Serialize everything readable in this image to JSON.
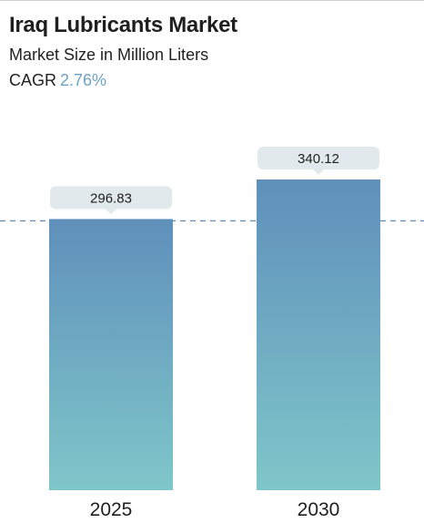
{
  "header": {
    "title": "Iraq Lubricants Market",
    "subtitle": "Market Size in Million Liters",
    "cagr_label": "CAGR",
    "cagr_value": "2.76%"
  },
  "colors": {
    "bar_top": "#5f90bb",
    "bar_bottom": "#7fc6c9",
    "label_bg": "#e2e9ec",
    "reference_line": "#5f8db5",
    "cagr_accent": "#6aa3c4"
  },
  "chart_data": {
    "type": "bar",
    "title": "Iraq Lubricants Market",
    "subtitle": "Market Size in Million Liters",
    "categories": [
      "2025",
      "2030"
    ],
    "values": [
      296.83,
      340.12
    ],
    "value_labels": [
      "296.83",
      "340.12"
    ],
    "reference_line_value": 296.83,
    "reference_line_style": "dashed",
    "grid": false,
    "legend": "none",
    "ylim": [
      0,
      340.12
    ]
  }
}
